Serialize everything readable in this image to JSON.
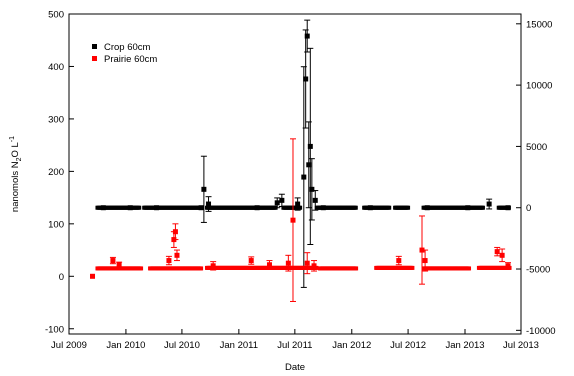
{
  "chart_data": {
    "type": "scatter",
    "title": "",
    "xlabel": "Date",
    "ylabel": "nanomols N",
    "ylabel_sub": "2",
    "ylabel_mid": "O L",
    "ylabel_sup": "-1",
    "x_type": "date",
    "xlim": [
      "2009-07-01",
      "2013-07-01"
    ],
    "x_ticks": [
      "2009-07-01",
      "2010-01-01",
      "2010-07-01",
      "2011-01-01",
      "2011-07-01",
      "2012-01-01",
      "2012-07-01",
      "2013-01-01",
      "2013-07-01"
    ],
    "x_tick_labels": [
      "Jul 2009",
      "Jan 2010",
      "Jul 2010",
      "Jan 2011",
      "Jul 2011",
      "Jan 2012",
      "Jul 2012",
      "Jan 2013",
      "Jul 2013"
    ],
    "ylim": [
      -110,
      500
    ],
    "y_ticks": [
      -100,
      0,
      100,
      200,
      300,
      400,
      500
    ],
    "y_tick_labels": [
      "-100",
      "0",
      "100",
      "200",
      "300",
      "400",
      "500"
    ],
    "y2lim": [
      -10300,
      15800
    ],
    "y2_ticks": [
      -10000,
      -5000,
      0,
      5000,
      10000,
      15000
    ],
    "y2_tick_labels": [
      "-10000",
      "-5000",
      "0",
      "5000",
      "10000",
      "15000"
    ],
    "legend_position": "top-left",
    "grid": false,
    "series": [
      {
        "name": "Crop 60cm",
        "axis": "right",
        "color": "#000000",
        "marker": "square",
        "points": [
          {
            "x": "2009-10-20",
            "y": 0
          },
          {
            "x": "2010-01-15",
            "y": 0
          },
          {
            "x": "2010-04-10",
            "y": 0
          },
          {
            "x": "2010-09-01",
            "y": 0
          },
          {
            "x": "2010-09-10",
            "y": 1500,
            "err": 2700
          },
          {
            "x": "2010-09-25",
            "y": 300,
            "err": 600
          },
          {
            "x": "2011-03-01",
            "y": 0
          },
          {
            "x": "2011-05-05",
            "y": 400,
            "err": 400
          },
          {
            "x": "2011-05-20",
            "y": 600,
            "err": 500
          },
          {
            "x": "2011-07-10",
            "y": 300,
            "err": 500
          },
          {
            "x": "2011-07-30",
            "y": 2500,
            "err": 9000
          },
          {
            "x": "2011-08-05",
            "y": 10500,
            "err": 4000
          },
          {
            "x": "2011-08-10",
            "y": 14000,
            "err": 1300
          },
          {
            "x": "2011-08-15",
            "y": 3500,
            "err": 3500
          },
          {
            "x": "2011-08-20",
            "y": 5000,
            "err": 8000
          },
          {
            "x": "2011-08-25",
            "y": 1500,
            "err": 2500
          },
          {
            "x": "2011-09-05",
            "y": 600,
            "err": 800
          },
          {
            "x": "2011-10-01",
            "y": 0
          },
          {
            "x": "2012-03-01",
            "y": 0
          },
          {
            "x": "2012-09-01",
            "y": 0
          },
          {
            "x": "2013-01-10",
            "y": 0
          },
          {
            "x": "2013-03-20",
            "y": 300,
            "err": 400
          },
          {
            "x": "2013-05-20",
            "y": 0
          }
        ],
        "segments": [
          {
            "start": "2009-10-01",
            "end": "2010-02-15",
            "y": 0
          },
          {
            "start": "2010-03-01",
            "end": "2010-09-01",
            "y": 0
          },
          {
            "start": "2010-09-20",
            "end": "2011-05-01",
            "y": 0
          },
          {
            "start": "2011-05-25",
            "end": "2011-07-20",
            "y": 0
          },
          {
            "start": "2011-09-10",
            "end": "2012-01-15",
            "y": 0
          },
          {
            "start": "2012-02-10",
            "end": "2012-05-01",
            "y": 0
          },
          {
            "start": "2012-05-20",
            "end": "2012-07-01",
            "y": 0
          },
          {
            "start": "2012-08-20",
            "end": "2013-03-01",
            "y": 0
          },
          {
            "start": "2013-04-20",
            "end": "2013-05-25",
            "y": 0
          }
        ]
      },
      {
        "name": "Prairie 60cm",
        "axis": "left",
        "color": "#ff0000",
        "marker": "square",
        "points": [
          {
            "x": "2009-09-15",
            "y": 0
          },
          {
            "x": "2009-11-20",
            "y": 30,
            "err": 6
          },
          {
            "x": "2009-12-10",
            "y": 22,
            "err": 5
          },
          {
            "x": "2010-05-20",
            "y": 30,
            "err": 8
          },
          {
            "x": "2010-06-05",
            "y": 70,
            "err": 15
          },
          {
            "x": "2010-06-10",
            "y": 85,
            "err": 15
          },
          {
            "x": "2010-06-15",
            "y": 40,
            "err": 10
          },
          {
            "x": "2010-10-10",
            "y": 20,
            "err": 8
          },
          {
            "x": "2011-02-10",
            "y": 30,
            "err": 7
          },
          {
            "x": "2011-04-10",
            "y": 22,
            "err": 8
          },
          {
            "x": "2011-06-10",
            "y": 25,
            "err": 15
          },
          {
            "x": "2011-06-25",
            "y": 107,
            "err": 155
          },
          {
            "x": "2011-08-10",
            "y": 25,
            "err": 20
          },
          {
            "x": "2011-09-01",
            "y": 20,
            "err": 10
          },
          {
            "x": "2012-06-01",
            "y": 30,
            "err": 8
          },
          {
            "x": "2012-08-15",
            "y": 50,
            "err": 65
          },
          {
            "x": "2012-08-25",
            "y": 30,
            "err": 20
          },
          {
            "x": "2013-04-15",
            "y": 47,
            "err": 8
          },
          {
            "x": "2013-05-01",
            "y": 40,
            "err": 12
          },
          {
            "x": "2013-05-20",
            "y": 20,
            "err": 6
          }
        ],
        "segments": [
          {
            "start": "2009-10-01",
            "end": "2010-02-20",
            "y": 15
          },
          {
            "start": "2010-03-20",
            "end": "2010-09-01",
            "y": 15
          },
          {
            "start": "2010-09-20",
            "end": "2011-09-10",
            "y": 16
          },
          {
            "start": "2011-09-20",
            "end": "2012-01-15",
            "y": 15
          },
          {
            "start": "2012-03-20",
            "end": "2012-07-15",
            "y": 16
          },
          {
            "start": "2012-08-20",
            "end": "2013-01-15",
            "y": 15
          },
          {
            "start": "2013-02-15",
            "end": "2013-05-25",
            "y": 16
          }
        ]
      }
    ]
  }
}
